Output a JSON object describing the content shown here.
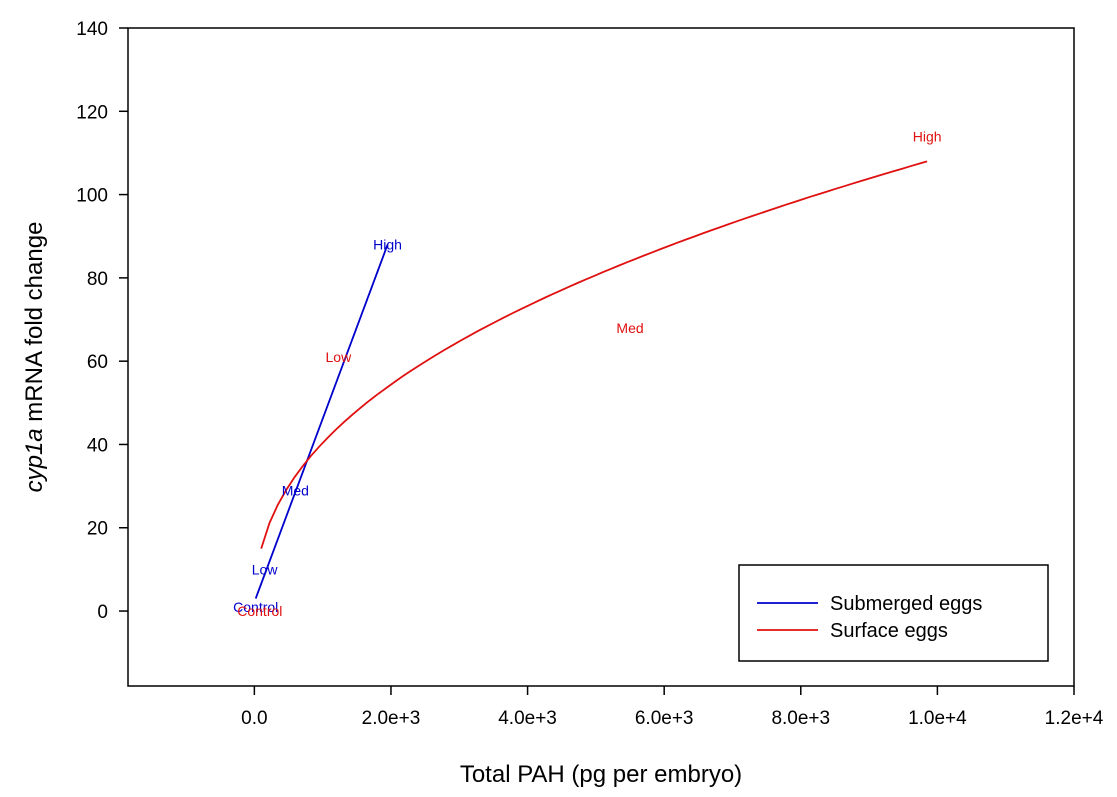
{
  "chart_data": {
    "type": "line",
    "title": "",
    "xlabel": "Total PAH (pg per embryo)",
    "ylabel_italic": "cyp1a",
    "ylabel_rest": " mRNA fold change",
    "xlim": [
      -1850,
      12000
    ],
    "ylim": [
      -18,
      140
    ],
    "x_ticks": [
      0,
      2000,
      4000,
      6000,
      8000,
      10000,
      12000
    ],
    "x_tick_labels": [
      "0.0",
      "2.0e+3",
      "4.0e+3",
      "6.0e+3",
      "8.0e+3",
      "1.0e+4",
      "1.2e+4"
    ],
    "y_ticks": [
      0,
      20,
      40,
      60,
      80,
      100,
      120,
      140
    ],
    "y_tick_labels": [
      "0",
      "20",
      "40",
      "60",
      "80",
      "100",
      "120",
      "140"
    ],
    "grid": false,
    "legend_position": "bottom-right",
    "series": [
      {
        "name": "Submerged eggs",
        "color": "#0000cc",
        "fit": "linear",
        "line_x": [
          20,
          1950
        ],
        "line_y": [
          3,
          88
        ],
        "points": [
          {
            "label": "Control",
            "x": 20,
            "y": 1
          },
          {
            "label": "Low",
            "x": 150,
            "y": 10
          },
          {
            "label": "Med",
            "x": 600,
            "y": 29
          },
          {
            "label": "High",
            "x": 1950,
            "y": 88
          }
        ]
      },
      {
        "name": "Surface eggs",
        "color": "#e01010",
        "fit": "power",
        "fit_a": 15,
        "fit_x0": 100,
        "fit_b": 0.43,
        "fit_x_range": [
          100,
          9850
        ],
        "points": [
          {
            "label": "Control",
            "x": 80,
            "y": 0
          },
          {
            "label": "Low",
            "x": 1230,
            "y": 61
          },
          {
            "label": "Med",
            "x": 5500,
            "y": 68
          },
          {
            "label": "High",
            "x": 9850,
            "y": 114
          }
        ]
      }
    ]
  }
}
